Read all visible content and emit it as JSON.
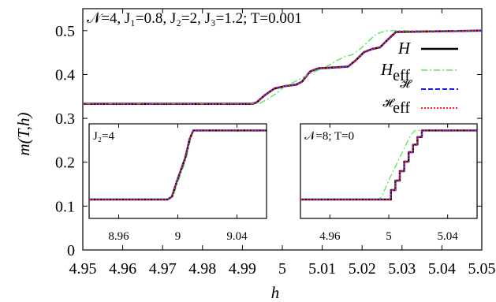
{
  "chart_data": [
    {
      "id": "main",
      "type": "line",
      "title": "",
      "xlabel": "h",
      "ylabel": "m(T,h)",
      "xlim": [
        4.95,
        5.05
      ],
      "ylim": [
        0,
        0.55
      ],
      "xticks": [
        "4.95",
        "4.96",
        "4.97",
        "4.98",
        "4.99",
        "5",
        "5.01",
        "5.02",
        "5.03",
        "5.04",
        "5.05"
      ],
      "yticks": [
        "0",
        "0.1",
        "0.2",
        "0.3",
        "0.4",
        "0.5"
      ],
      "annotation": "𝒩=4, J₁=0.8, J₂=2, J₃=1.2; T=0.001",
      "legend_position": "top-right",
      "series": [
        {
          "name": "H",
          "color": "#000000",
          "dash": "none",
          "width": 2.6,
          "x": [
            4.95,
            4.9925,
            4.9935,
            4.9955,
            4.998,
            5.001,
            5.0035,
            5.005,
            5.0055,
            5.007,
            5.009,
            5.0115,
            5.013,
            5.0165,
            5.0185,
            5.0205,
            5.0225,
            5.0245,
            5.0265,
            5.0285,
            5.05
          ],
          "y": [
            0.333,
            0.333,
            0.336,
            0.352,
            0.368,
            0.374,
            0.377,
            0.384,
            0.39,
            0.407,
            0.414,
            0.415,
            0.416,
            0.418,
            0.433,
            0.451,
            0.458,
            0.462,
            0.48,
            0.497,
            0.5
          ]
        },
        {
          "name": "H_eff",
          "color": "#5ae65a",
          "dash": "8,3,2,3",
          "width": 1.4,
          "x": [
            4.95,
            4.9925,
            4.9945,
            4.9965,
            4.9985,
            5.0005,
            5.003,
            5.006,
            5.009,
            5.0115,
            5.0135,
            5.0155,
            5.0175,
            5.0195,
            5.0215,
            5.0235,
            5.0255,
            5.0265,
            5.05
          ],
          "y": [
            0.333,
            0.333,
            0.335,
            0.345,
            0.357,
            0.372,
            0.383,
            0.397,
            0.41,
            0.42,
            0.431,
            0.44,
            0.445,
            0.458,
            0.475,
            0.492,
            0.498,
            0.5,
            0.5
          ]
        },
        {
          "name": "𝓗",
          "color": "#1a1aff",
          "dash": "6,3",
          "width": 2.0,
          "x": [
            4.95,
            4.9925,
            4.9935,
            4.9955,
            4.998,
            5.001,
            5.0035,
            5.005,
            5.0055,
            5.007,
            5.009,
            5.0115,
            5.013,
            5.0165,
            5.0185,
            5.0205,
            5.0225,
            5.0245,
            5.0265,
            5.0285,
            5.05
          ],
          "y": [
            0.333,
            0.333,
            0.336,
            0.352,
            0.368,
            0.374,
            0.377,
            0.384,
            0.39,
            0.407,
            0.414,
            0.415,
            0.416,
            0.418,
            0.433,
            0.451,
            0.458,
            0.462,
            0.48,
            0.497,
            0.5
          ]
        },
        {
          "name": "𝓗_eff",
          "color": "#ff2020",
          "dash": "2,2",
          "width": 2.0,
          "x": [
            4.95,
            4.9925,
            4.9935,
            4.9955,
            4.998,
            5.001,
            5.0035,
            5.005,
            5.0055,
            5.007,
            5.009,
            5.0115,
            5.013,
            5.0165,
            5.0185,
            5.0205,
            5.0225,
            5.0245,
            5.0265,
            5.0285,
            5.05
          ],
          "y": [
            0.333,
            0.333,
            0.336,
            0.352,
            0.368,
            0.374,
            0.377,
            0.384,
            0.39,
            0.407,
            0.414,
            0.415,
            0.416,
            0.418,
            0.433,
            0.451,
            0.458,
            0.462,
            0.48,
            0.497,
            0.5
          ]
        }
      ],
      "legend": [
        {
          "label": "H",
          "sub": ""
        },
        {
          "label": "H",
          "sub": "eff"
        },
        {
          "label": "𝓗",
          "sub": ""
        },
        {
          "label": "𝓗",
          "sub": "eff"
        }
      ]
    },
    {
      "id": "inset-left",
      "type": "line",
      "annotation": "J₂=4",
      "xlim": [
        8.94,
        9.06
      ],
      "ylim": [
        0,
        1
      ],
      "xticks": [
        "8.96",
        "9",
        "9.04"
      ],
      "xtick_values": [
        8.96,
        9.0,
        9.04
      ],
      "series": [
        {
          "name": "H_eff",
          "color": "#5ae65a",
          "dash": "8,3,2,3",
          "width": 1.3,
          "x": [
            8.94,
            8.9935,
            8.9965,
            9.0,
            9.0055,
            9.0085,
            9.0105,
            9.06
          ],
          "y": [
            0.2,
            0.2,
            0.22,
            0.38,
            0.62,
            0.82,
            0.93,
            0.93
          ]
        },
        {
          "name": "H",
          "color": "#000000",
          "dash": "none",
          "width": 2.4,
          "x": [
            8.94,
            8.993,
            8.996,
            8.9995,
            9.005,
            9.008,
            9.0105,
            9.06
          ],
          "y": [
            0.2,
            0.2,
            0.23,
            0.4,
            0.64,
            0.84,
            0.93,
            0.93
          ]
        },
        {
          "name": "𝓗",
          "color": "#1a1aff",
          "dash": "6,3",
          "width": 1.8,
          "x": [
            8.94,
            8.993,
            8.996,
            8.9995,
            9.005,
            9.008,
            9.0105,
            9.06
          ],
          "y": [
            0.2,
            0.2,
            0.23,
            0.4,
            0.64,
            0.84,
            0.93,
            0.93
          ]
        },
        {
          "name": "𝓗_eff",
          "color": "#ff2020",
          "dash": "2,2",
          "width": 1.8,
          "x": [
            8.94,
            8.993,
            8.996,
            8.9995,
            9.005,
            9.008,
            9.0105,
            9.06
          ],
          "y": [
            0.2,
            0.2,
            0.23,
            0.4,
            0.64,
            0.84,
            0.93,
            0.93
          ]
        }
      ]
    },
    {
      "id": "inset-right",
      "type": "line",
      "annotation": "𝒩=8; T=0",
      "xlim": [
        4.94,
        5.06
      ],
      "ylim": [
        0,
        1
      ],
      "xticks": [
        "4.96",
        "5",
        "5.04"
      ],
      "xtick_values": [
        4.96,
        5.0,
        5.04
      ],
      "series": [
        {
          "name": "H_eff",
          "color": "#5ae65a",
          "dash": "8,3,2,3",
          "width": 1.3,
          "x": [
            4.94,
            4.9935,
            4.9955,
            4.998,
            5.0005,
            5.003,
            5.0055,
            5.008,
            5.0105,
            5.013,
            5.0155,
            5.018,
            5.06
          ],
          "y": [
            0.2,
            0.2,
            0.24,
            0.33,
            0.42,
            0.5,
            0.58,
            0.66,
            0.74,
            0.82,
            0.89,
            0.93,
            0.93
          ]
        },
        {
          "name": "H",
          "color": "#000000",
          "dash": "none",
          "width": 2.4,
          "x": [
            4.94,
            4.9985,
            5.0015,
            5.0045,
            5.0075,
            5.0105,
            5.0135,
            5.0165,
            5.0195,
            5.0225,
            5.06
          ],
          "y": [
            0.2,
            0.2,
            0.3,
            0.4,
            0.5,
            0.6,
            0.7,
            0.78,
            0.86,
            0.93,
            0.93
          ],
          "step": true
        },
        {
          "name": "𝓗",
          "color": "#1a1aff",
          "dash": "6,3",
          "width": 1.8,
          "x": [
            4.94,
            4.9985,
            5.0015,
            5.0045,
            5.0075,
            5.0105,
            5.0135,
            5.0165,
            5.0195,
            5.0225,
            5.06
          ],
          "y": [
            0.2,
            0.2,
            0.3,
            0.4,
            0.5,
            0.6,
            0.7,
            0.78,
            0.86,
            0.93,
            0.93
          ],
          "step": true
        },
        {
          "name": "𝓗_eff",
          "color": "#ff2020",
          "dash": "2,2",
          "width": 1.8,
          "x": [
            4.94,
            4.9985,
            5.0015,
            5.0045,
            5.0075,
            5.0105,
            5.0135,
            5.0165,
            5.0195,
            5.0225,
            5.06
          ],
          "y": [
            0.2,
            0.2,
            0.3,
            0.4,
            0.5,
            0.6,
            0.7,
            0.78,
            0.86,
            0.93,
            0.93
          ],
          "step": true
        }
      ]
    }
  ]
}
